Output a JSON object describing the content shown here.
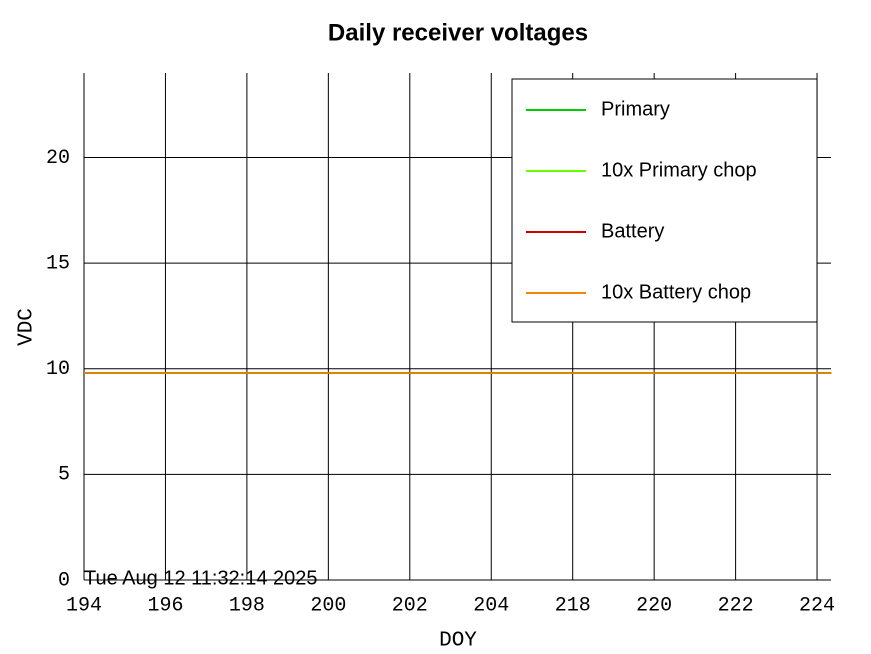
{
  "chart_data": {
    "type": "line",
    "title": "Daily receiver voltages",
    "xlabel": "DOY",
    "ylabel": "VDC",
    "annotation": "Tue Aug 12 11:32:14 2025",
    "x": [
      194,
      224.35
    ],
    "series": [
      {
        "name": "Primary",
        "color": "#00cc00",
        "values": [
          9.8,
          9.8
        ]
      },
      {
        "name": "10x Primary chop",
        "color": "#66ff00",
        "values": [
          9.8,
          9.8
        ]
      },
      {
        "name": "Battery",
        "color": "#cc0000",
        "values": [
          9.8,
          9.8
        ]
      },
      {
        "name": "10x Battery chop",
        "color": "#ee8800",
        "values": [
          9.8,
          9.8
        ]
      }
    ],
    "xlim": [
      194,
      224.35
    ],
    "xticks": [
      194,
      196,
      198,
      200,
      202,
      204,
      218,
      220,
      222,
      224
    ],
    "ylim": [
      0,
      24
    ],
    "yticks": [
      0,
      5,
      10,
      15,
      20
    ],
    "grid": true,
    "legend": "upper right"
  }
}
